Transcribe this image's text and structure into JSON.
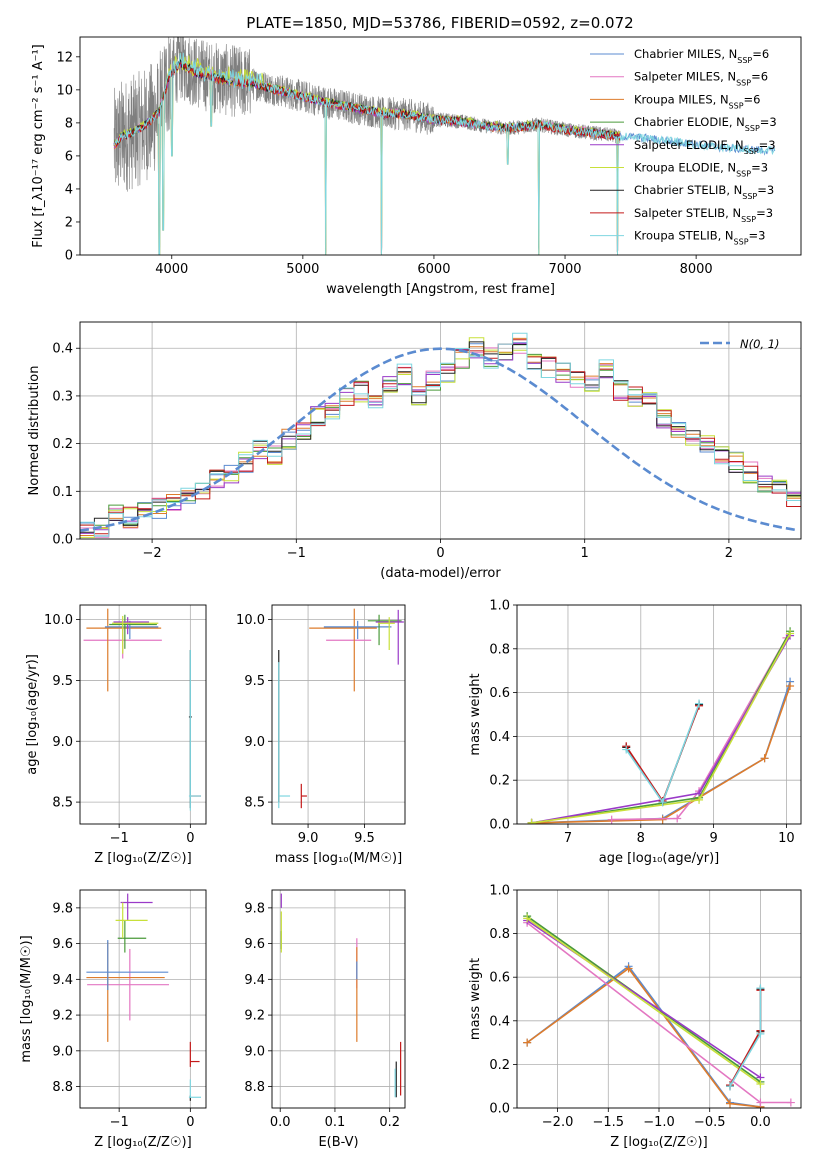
{
  "figure": {
    "title": "PLATE=1850, MJD=53786, FIBERID=0592, z=0.072"
  },
  "colors": {
    "blue": "#5b8bd0",
    "pink": "#e377c2",
    "orange": "#dd7c2c",
    "green": "#4a9a3a",
    "purple": "#9a3ac8",
    "lime": "#c8e03a",
    "black": "#222222",
    "red": "#c41a1a",
    "cyan": "#7fd6e0",
    "data": "#7f7f7f",
    "grid": "#b0b0b0"
  },
  "chart_data": [
    {
      "id": "spectrum",
      "type": "line",
      "xlabel": "wavelength [Angstrom, rest frame]",
      "ylabel": "Flux [f_λ10⁻¹⁷ erg cm⁻² s⁻¹ A⁻¹]",
      "xlim": [
        3300,
        8800
      ],
      "ylim": [
        0,
        13.2
      ],
      "xticks": [
        4000,
        5000,
        6000,
        7000,
        8000
      ],
      "yticks": [
        0,
        2,
        4,
        6,
        8,
        10,
        12
      ],
      "grid": false,
      "legend_position": "upper right",
      "series": [
        {
          "name": "Chabrier MILES, N_SSP=6",
          "color": "blue"
        },
        {
          "name": "Salpeter MILES, N_SSP=6",
          "color": "pink"
        },
        {
          "name": "Kroupa MILES, N_SSP=6",
          "color": "orange"
        },
        {
          "name": "Chabrier ELODIE, N_SSP=3",
          "color": "green"
        },
        {
          "name": "Salpeter ELODIE, N_SSP=3",
          "color": "purple"
        },
        {
          "name": "Kroupa ELODIE, N_SSP=3",
          "color": "lime"
        },
        {
          "name": "Chabrier STELIB, N_SSP=3",
          "color": "black"
        },
        {
          "name": "Salpeter STELIB, N_SSP=3",
          "color": "red"
        },
        {
          "name": "Kroupa STELIB, N_SSP=3",
          "color": "cyan"
        }
      ],
      "model_continuum": [
        [
          3560,
          6.6
        ],
        [
          3620,
          7.2
        ],
        [
          3700,
          7.4
        ],
        [
          3800,
          7.9
        ],
        [
          3900,
          8.6
        ],
        [
          3980,
          10.8
        ],
        [
          4060,
          11.6
        ],
        [
          4200,
          11.0
        ],
        [
          4400,
          10.6
        ],
        [
          4600,
          10.4
        ],
        [
          4800,
          10.0
        ],
        [
          5000,
          9.6
        ],
        [
          5200,
          9.2
        ],
        [
          5400,
          8.9
        ],
        [
          5600,
          8.6
        ],
        [
          5800,
          8.5
        ],
        [
          6000,
          8.2
        ],
        [
          6200,
          8.1
        ],
        [
          6400,
          7.8
        ],
        [
          6600,
          7.7
        ],
        [
          6800,
          7.9
        ],
        [
          7000,
          7.6
        ],
        [
          7200,
          7.4
        ],
        [
          7400,
          7.2
        ],
        [
          7600,
          7.1
        ],
        [
          7800,
          6.9
        ],
        [
          8000,
          6.7
        ],
        [
          8200,
          6.5
        ],
        [
          8400,
          6.4
        ],
        [
          8600,
          6.3
        ]
      ],
      "data_spectrum_range": [
        3560,
        7420
      ],
      "absorption_lines": [
        [
          3905,
          0
        ],
        [
          3935,
          1.5
        ],
        [
          4000,
          6.0
        ],
        [
          4300,
          7.8
        ],
        [
          5175,
          0
        ],
        [
          5600,
          0
        ],
        [
          6563,
          5.5
        ],
        [
          6800,
          0
        ],
        [
          7400,
          0
        ]
      ]
    },
    {
      "id": "residual_hist",
      "type": "step",
      "xlabel": "(data-model)/error",
      "ylabel": "Normed distribution",
      "xlim": [
        -2.5,
        2.5
      ],
      "ylim": [
        0,
        0.455
      ],
      "xticks": [
        -2,
        -1,
        0,
        1,
        2
      ],
      "yticks": [
        0.0,
        0.1,
        0.2,
        0.3,
        0.4
      ],
      "grid": true,
      "legend_position": "upper right",
      "gaussian_label": "N(0, 1)",
      "bin_width": 0.1,
      "bins_start": -2.5,
      "hist_values": [
        0.02,
        0.025,
        0.05,
        0.045,
        0.055,
        0.065,
        0.08,
        0.09,
        0.1,
        0.13,
        0.135,
        0.16,
        0.19,
        0.175,
        0.21,
        0.225,
        0.255,
        0.27,
        0.3,
        0.31,
        0.295,
        0.32,
        0.345,
        0.3,
        0.33,
        0.35,
        0.38,
        0.4,
        0.38,
        0.39,
        0.41,
        0.37,
        0.36,
        0.35,
        0.34,
        0.32,
        0.36,
        0.31,
        0.3,
        0.29,
        0.25,
        0.235,
        0.21,
        0.2,
        0.18,
        0.16,
        0.14,
        0.12,
        0.11,
        0.08,
        0.09,
        0.06,
        0.055,
        0.05,
        0.04,
        0.035,
        0.03,
        0.025,
        0.02,
        0.03
      ],
      "series_colors": [
        "blue",
        "pink",
        "orange",
        "green",
        "purple",
        "lime",
        "black",
        "red",
        "cyan"
      ]
    },
    {
      "id": "age_vs_Z",
      "type": "errorbar",
      "xlabel": "Z [log₁₀(Z/Z☉)]",
      "ylabel": "age  [log₁₀(age/yr)]",
      "xlim": [
        -1.55,
        0.22
      ],
      "ylim": [
        8.32,
        10.12
      ],
      "xticks": [
        -1,
        0
      ],
      "yticks": [
        8.5,
        9.0,
        9.5,
        10.0
      ],
      "grid": true,
      "points": [
        {
          "color": "pink",
          "x": -0.95,
          "xerr": [
            0.55,
            0.55
          ],
          "y": 9.83,
          "yerr": [
            0.15,
            0.1
          ]
        },
        {
          "color": "orange",
          "x": -1.16,
          "xerr": [
            0.3,
            0.75
          ],
          "y": 9.93,
          "yerr": [
            0.52,
            0.16
          ]
        },
        {
          "color": "blue",
          "x": -0.85,
          "xerr": [
            0.35,
            0.4
          ],
          "y": 9.94,
          "yerr": [
            0.1,
            0.05
          ]
        },
        {
          "color": "green",
          "x": -0.92,
          "xerr": [
            0.22,
            0.45
          ],
          "y": 9.96,
          "yerr": [
            0.2,
            0.08
          ]
        },
        {
          "color": "purple",
          "x": -0.88,
          "xerr": [
            0.2,
            0.3
          ],
          "y": 9.98,
          "yerr": [
            0.1,
            0.04
          ]
        },
        {
          "color": "lime",
          "x": -0.95,
          "xerr": [
            0.15,
            0.5
          ],
          "y": 9.97,
          "yerr": [
            0.25,
            0.06
          ]
        },
        {
          "color": "black",
          "x": -0.0,
          "xerr": [
            0.02,
            0.02
          ],
          "y": 9.2,
          "yerr": [
            0.75,
            0.55
          ]
        },
        {
          "color": "red",
          "x": 0.0,
          "xerr": [
            0.0,
            0.15
          ],
          "y": 8.55,
          "yerr": [
            0.0,
            0.0
          ]
        },
        {
          "color": "cyan",
          "x": 0.0,
          "xerr": [
            0.02,
            0.15
          ],
          "y": 8.55,
          "yerr": [
            0.12,
            1.2
          ]
        }
      ]
    },
    {
      "id": "age_vs_mass",
      "type": "errorbar",
      "xlabel": "mass [log₁₀(M/M☉)]",
      "ylabel": "",
      "xlim": [
        8.68,
        9.86
      ],
      "ylim": [
        8.32,
        10.12
      ],
      "xticks": [
        9.0,
        9.5
      ],
      "yticks": [
        8.5,
        9.0,
        9.5,
        10.0
      ],
      "grid": true,
      "points": [
        {
          "color": "pink",
          "x": 9.36,
          "xerr": [
            0.2,
            0.2
          ],
          "y": 9.83,
          "yerr": [
            0.0,
            0.0
          ]
        },
        {
          "color": "orange",
          "x": 9.41,
          "xerr": [
            0.4,
            0.2
          ],
          "y": 9.93,
          "yerr": [
            0.52,
            0.16
          ]
        },
        {
          "color": "blue",
          "x": 9.44,
          "xerr": [
            0.3,
            0.3
          ],
          "y": 9.94,
          "yerr": [
            0.1,
            0.05
          ]
        },
        {
          "color": "green",
          "x": 9.63,
          "xerr": [
            0.1,
            0.2
          ],
          "y": 9.99,
          "yerr": [
            0.2,
            0.05
          ]
        },
        {
          "color": "purple",
          "x": 9.8,
          "xerr": [
            0.2,
            0.05
          ],
          "y": 9.98,
          "yerr": [
            0.35,
            0.1
          ]
        },
        {
          "color": "lime",
          "x": 9.72,
          "xerr": [
            0.1,
            0.05
          ],
          "y": 9.97,
          "yerr": [
            0.22,
            0.05
          ]
        },
        {
          "color": "black",
          "x": 8.74,
          "xerr": [
            0.0,
            0.0
          ],
          "y": 9.2,
          "yerr": [
            0.7,
            0.55
          ]
        },
        {
          "color": "red",
          "x": 8.94,
          "xerr": [
            0.0,
            0.05
          ],
          "y": 8.55,
          "yerr": [
            0.1,
            0.1
          ]
        },
        {
          "color": "cyan",
          "x": 8.74,
          "xerr": [
            0.0,
            0.1
          ],
          "y": 8.55,
          "yerr": [
            0.1,
            1.1
          ]
        }
      ]
    },
    {
      "id": "weight_vs_age",
      "type": "line",
      "xlabel": "age  [log₁₀(age/yr)]",
      "ylabel": "mass weight",
      "xlim": [
        6.3,
        10.2
      ],
      "ylim": [
        0,
        1.0
      ],
      "xticks": [
        7,
        8,
        9,
        10
      ],
      "yticks": [
        0.0,
        0.2,
        0.4,
        0.6,
        0.8,
        1.0
      ],
      "grid": true,
      "series": [
        {
          "color": "blue",
          "x": [
            6.5,
            8.3,
            9.7,
            10.05
          ],
          "y": [
            0.005,
            0.025,
            0.3,
            0.65
          ]
        },
        {
          "color": "orange",
          "x": [
            6.5,
            8.3,
            9.7,
            10.05
          ],
          "y": [
            0.005,
            0.02,
            0.3,
            0.63
          ]
        },
        {
          "color": "pink",
          "x": [
            7.6,
            8.5,
            8.8,
            10.0
          ],
          "y": [
            0.02,
            0.025,
            0.15,
            0.85
          ]
        },
        {
          "color": "green",
          "x": [
            6.5,
            8.8,
            10.05
          ],
          "y": [
            0.005,
            0.12,
            0.88
          ]
        },
        {
          "color": "purple",
          "x": [
            6.5,
            8.8,
            10.05
          ],
          "y": [
            0.005,
            0.14,
            0.86
          ]
        },
        {
          "color": "lime",
          "x": [
            6.5,
            8.8,
            10.05
          ],
          "y": [
            0.005,
            0.11,
            0.87
          ]
        },
        {
          "color": "black",
          "x": [
            7.8,
            8.3,
            8.8
          ],
          "y": [
            0.35,
            0.1,
            0.545
          ]
        },
        {
          "color": "red",
          "x": [
            7.8,
            8.3,
            8.8
          ],
          "y": [
            0.355,
            0.105,
            0.54
          ]
        },
        {
          "color": "cyan",
          "x": [
            7.8,
            8.3,
            8.8
          ],
          "y": [
            0.34,
            0.1,
            0.55
          ]
        }
      ]
    },
    {
      "id": "mass_vs_Z",
      "type": "errorbar",
      "xlabel": "Z [log₁₀(Z/Z☉)]",
      "ylabel": "mass [log₁₀(M/M☉)]",
      "xlim": [
        -1.55,
        0.22
      ],
      "ylim": [
        8.68,
        9.9
      ],
      "xticks": [
        -1,
        0
      ],
      "yticks": [
        8.8,
        9.0,
        9.2,
        9.4,
        9.6,
        9.8
      ],
      "grid": true,
      "points": [
        {
          "color": "pink",
          "x": -0.85,
          "xerr": [
            0.6,
            0.55
          ],
          "y": 9.37,
          "yerr": [
            0.2,
            0.2
          ]
        },
        {
          "color": "orange",
          "x": -1.16,
          "xerr": [
            0.3,
            0.8
          ],
          "y": 9.41,
          "yerr": [
            0.36,
            0.2
          ]
        },
        {
          "color": "blue",
          "x": -1.16,
          "xerr": [
            0.3,
            0.85
          ],
          "y": 9.44,
          "yerr": [
            0.1,
            0.18
          ]
        },
        {
          "color": "green",
          "x": -0.92,
          "xerr": [
            0.1,
            0.3
          ],
          "y": 9.63,
          "yerr": [
            0.08,
            0.1
          ]
        },
        {
          "color": "purple",
          "x": -0.88,
          "xerr": [
            0.1,
            0.35
          ],
          "y": 9.83,
          "yerr": [
            0.1,
            0.05
          ]
        },
        {
          "color": "lime",
          "x": -0.95,
          "xerr": [
            0.1,
            0.35
          ],
          "y": 9.73,
          "yerr": [
            0.1,
            0.1
          ]
        },
        {
          "color": "black",
          "x": 0.0,
          "xerr": [
            0.0,
            0.0
          ],
          "y": 8.75,
          "yerr": [
            0.03,
            0.0
          ]
        },
        {
          "color": "red",
          "x": 0.0,
          "xerr": [
            0.0,
            0.13
          ],
          "y": 8.94,
          "yerr": [
            0.03,
            0.11
          ]
        },
        {
          "color": "cyan",
          "x": 0.0,
          "xerr": [
            0.02,
            0.15
          ],
          "y": 8.74,
          "yerr": [
            0.0,
            0.1
          ]
        }
      ]
    },
    {
      "id": "mass_vs_EBV",
      "type": "errorbar",
      "xlabel": "E(B-V)",
      "ylabel": "",
      "xlim": [
        -0.015,
        0.228
      ],
      "ylim": [
        8.68,
        9.9
      ],
      "xticks": [
        0.0,
        0.1,
        0.2
      ],
      "yticks": [
        8.8,
        9.0,
        9.2,
        9.4,
        9.6,
        9.8
      ],
      "grid": true,
      "points": [
        {
          "color": "pink",
          "x": 0.14,
          "y": 9.5,
          "yerr": [
            0.15,
            0.13
          ]
        },
        {
          "color": "orange",
          "x": 0.14,
          "y": 9.3,
          "yerr": [
            0.25,
            0.28
          ]
        },
        {
          "color": "blue",
          "x": 0.14,
          "y": 9.45,
          "yerr": [
            0.05,
            0.05
          ]
        },
        {
          "color": "green",
          "x": 0.002,
          "y": 9.62,
          "yerr": [
            0.05,
            0.05
          ]
        },
        {
          "color": "purple",
          "x": 0.002,
          "y": 9.83,
          "yerr": [
            0.03,
            0.05
          ]
        },
        {
          "color": "lime",
          "x": 0.002,
          "y": 9.68,
          "yerr": [
            0.13,
            0.1
          ]
        },
        {
          "color": "black",
          "x": 0.212,
          "y": 8.84,
          "yerr": [
            0.1,
            0.1
          ]
        },
        {
          "color": "red",
          "x": 0.22,
          "y": 8.95,
          "yerr": [
            0.2,
            0.1
          ]
        },
        {
          "color": "cyan",
          "x": 0.21,
          "y": 8.8,
          "yerr": [
            0.06,
            0.1
          ]
        }
      ]
    },
    {
      "id": "weight_vs_Z",
      "type": "line",
      "xlabel": "Z [log₁₀(Z/Z☉)]",
      "ylabel": "mass weight",
      "xlim": [
        -2.4,
        0.4
      ],
      "ylim": [
        0,
        1.0
      ],
      "xticks": [
        -2.0,
        -1.5,
        -1.0,
        -0.5,
        0.0
      ],
      "yticks": [
        0.0,
        0.2,
        0.4,
        0.6,
        0.8,
        1.0
      ],
      "grid": true,
      "series": [
        {
          "color": "blue",
          "x": [
            -2.3,
            -1.3,
            -0.3,
            0.0
          ],
          "y": [
            0.3,
            0.65,
            0.025,
            0.005
          ]
        },
        {
          "color": "orange",
          "x": [
            -2.3,
            -1.3,
            -0.3,
            0.0
          ],
          "y": [
            0.3,
            0.64,
            0.02,
            0.005
          ]
        },
        {
          "color": "pink",
          "x": [
            -2.3,
            0.0,
            0.3
          ],
          "y": [
            0.85,
            0.025,
            0.025
          ]
        },
        {
          "color": "green",
          "x": [
            -2.3,
            0.0
          ],
          "y": [
            0.88,
            0.12
          ]
        },
        {
          "color": "purple",
          "x": [
            -2.3,
            0.0
          ],
          "y": [
            0.86,
            0.14
          ]
        },
        {
          "color": "lime",
          "x": [
            -2.3,
            0.0
          ],
          "y": [
            0.87,
            0.11
          ]
        },
        {
          "color": "black",
          "x": [
            -0.3,
            0.0,
            0.0
          ],
          "y": [
            0.1,
            0.35,
            0.545
          ]
        },
        {
          "color": "red",
          "x": [
            -0.3,
            0.0,
            0.0
          ],
          "y": [
            0.105,
            0.355,
            0.54
          ]
        },
        {
          "color": "cyan",
          "x": [
            -0.3,
            0.0,
            0.0
          ],
          "y": [
            0.1,
            0.34,
            0.55
          ]
        }
      ]
    }
  ]
}
